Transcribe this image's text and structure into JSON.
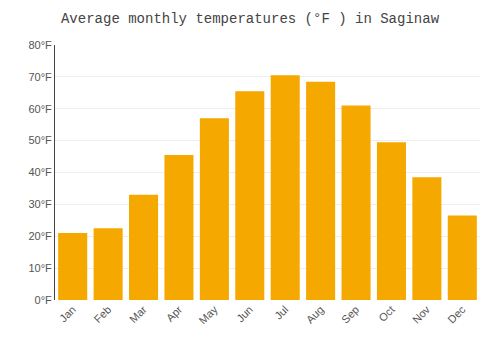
{
  "chart_data": {
    "type": "bar",
    "title": "Average monthly temperatures (°F ) in Saginaw",
    "categories": [
      "Jan",
      "Feb",
      "Mar",
      "Apr",
      "May",
      "Jun",
      "Jul",
      "Aug",
      "Sep",
      "Oct",
      "Nov",
      "Dec"
    ],
    "values": [
      21,
      22.5,
      33,
      45.5,
      57,
      65.5,
      70.5,
      68.5,
      61,
      49.5,
      38.5,
      26.5
    ],
    "color": "#F5A800",
    "ylim": [
      0,
      80
    ],
    "yticks": [
      {
        "value": 0,
        "label": "0°F"
      },
      {
        "value": 10,
        "label": "10°F"
      },
      {
        "value": 20,
        "label": "20°F"
      },
      {
        "value": 30,
        "label": "30°F"
      },
      {
        "value": 40,
        "label": "40°F"
      },
      {
        "value": 50,
        "label": "50°F"
      },
      {
        "value": 60,
        "label": "60°F"
      },
      {
        "value": 70,
        "label": "70°F"
      },
      {
        "value": 80,
        "label": "80°F"
      }
    ],
    "grid": true
  }
}
